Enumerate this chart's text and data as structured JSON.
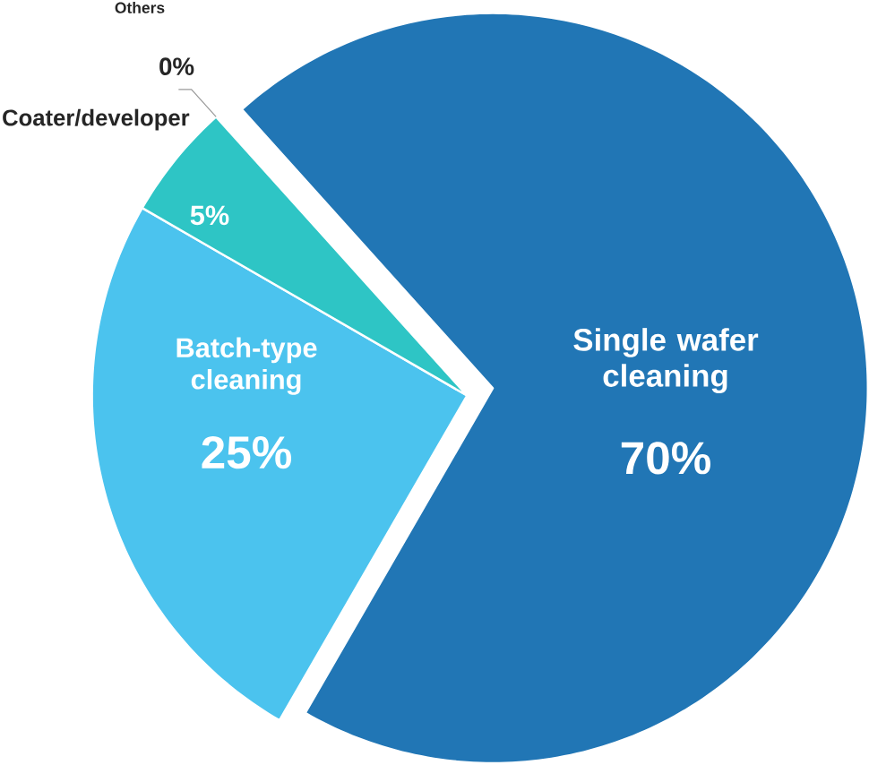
{
  "chart_data": {
    "type": "pie",
    "categories": [
      "Single wafer cleaning",
      "Batch-type cleaning",
      "Coater/developer",
      "Others"
    ],
    "values": [
      70,
      25,
      5,
      0
    ],
    "colors": [
      "#2176b5",
      "#4bc3ee",
      "#2ec5c5",
      "#9a9a9a"
    ],
    "value_labels": [
      "70%",
      "25%",
      "5%",
      "0%"
    ]
  }
}
